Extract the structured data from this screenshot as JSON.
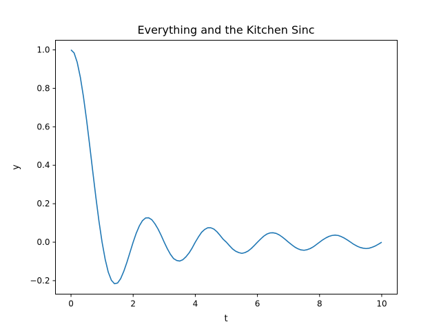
{
  "chart_data": {
    "type": "line",
    "title": "Everything and the Kitchen Sinc",
    "xlabel": "t",
    "ylabel": "y",
    "xlim": [
      -0.5,
      10.5
    ],
    "ylim": [
      -0.27,
      1.05
    ],
    "x_ticks": [
      0,
      2,
      4,
      6,
      8,
      10
    ],
    "x_tick_labels": [
      "0",
      "2",
      "4",
      "6",
      "8",
      "10"
    ],
    "y_ticks": [
      -0.2,
      0.0,
      0.2,
      0.4,
      0.6,
      0.8,
      1.0
    ],
    "y_tick_labels": [
      "−0.2",
      "0.0",
      "0.2",
      "0.4",
      "0.6",
      "0.8",
      "1.0"
    ],
    "grid": false,
    "series": [
      {
        "color": "#1f77b4",
        "x": [
          0,
          0.1,
          0.2,
          0.3,
          0.4,
          0.5,
          0.6,
          0.7,
          0.8,
          0.9,
          1.0,
          1.1,
          1.2,
          1.3,
          1.4,
          1.5,
          1.6,
          1.7,
          1.8,
          1.9,
          2.0,
          2.1,
          2.2,
          2.3,
          2.4,
          2.5,
          2.6,
          2.7,
          2.8,
          2.9,
          3.0,
          3.1,
          3.2,
          3.3,
          3.4,
          3.5,
          3.6,
          3.7,
          3.8,
          3.9,
          4.0,
          4.1,
          4.2,
          4.3,
          4.4,
          4.5,
          4.6,
          4.7,
          4.8,
          4.9,
          5.0,
          5.1,
          5.2,
          5.3,
          5.4,
          5.5,
          5.6,
          5.7,
          5.8,
          5.9,
          6.0,
          6.1,
          6.2,
          6.3,
          6.4,
          6.5,
          6.6,
          6.7,
          6.8,
          6.9,
          7.0,
          7.1,
          7.2,
          7.3,
          7.4,
          7.5,
          7.6,
          7.7,
          7.8,
          7.9,
          8.0,
          8.1,
          8.2,
          8.3,
          8.4,
          8.5,
          8.6,
          8.7,
          8.8,
          8.9,
          9.0,
          9.1,
          9.2,
          9.3,
          9.4,
          9.5,
          9.6,
          9.7,
          9.8,
          9.9,
          10.0
        ],
        "y": [
          1.0,
          0.984,
          0.935,
          0.858,
          0.757,
          0.637,
          0.505,
          0.368,
          0.234,
          0.109,
          0.0,
          -0.089,
          -0.156,
          -0.198,
          -0.216,
          -0.212,
          -0.189,
          -0.151,
          -0.104,
          -0.052,
          0.0,
          0.047,
          0.085,
          0.112,
          0.126,
          0.127,
          0.117,
          0.096,
          0.069,
          0.036,
          0.0,
          -0.034,
          -0.063,
          -0.085,
          -0.095,
          -0.098,
          -0.091,
          -0.076,
          -0.056,
          -0.03,
          0.0,
          0.027,
          0.051,
          0.066,
          0.075,
          0.075,
          0.068,
          0.054,
          0.035,
          0.015,
          0.0,
          -0.018,
          -0.035,
          -0.047,
          -0.054,
          -0.058,
          -0.054,
          -0.046,
          -0.033,
          -0.017,
          0.0,
          0.016,
          0.031,
          0.042,
          0.048,
          0.049,
          0.046,
          0.038,
          0.027,
          0.014,
          0.0,
          -0.013,
          -0.025,
          -0.034,
          -0.04,
          -0.042,
          -0.039,
          -0.033,
          -0.024,
          -0.012,
          0.0,
          0.012,
          0.022,
          0.03,
          0.035,
          0.037,
          0.035,
          0.029,
          0.021,
          0.011,
          0.0,
          -0.011,
          -0.02,
          -0.027,
          -0.031,
          -0.033,
          -0.031,
          -0.026,
          -0.019,
          -0.01,
          0.0
        ]
      }
    ]
  }
}
